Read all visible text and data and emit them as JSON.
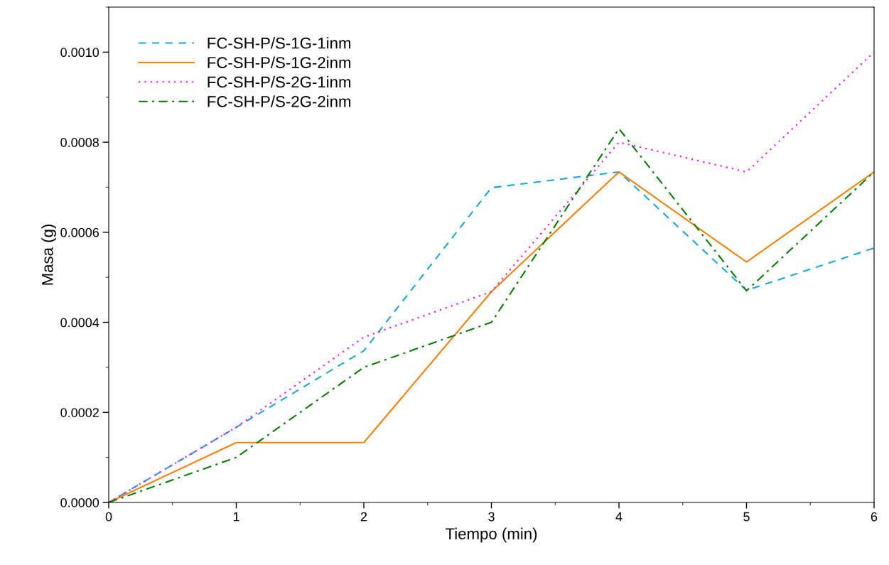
{
  "chart_data": {
    "type": "line",
    "xlabel": "Tiempo (min)",
    "ylabel": "Masa (g)",
    "x": [
      0,
      1,
      2,
      3,
      4,
      5,
      6
    ],
    "series": [
      {
        "name": "FC-SH-P/S-1G-1inm",
        "color": "#1aa7e0",
        "line_style": "dashed",
        "values": [
          0,
          0.000167,
          0.000337,
          0.000699,
          0.000734,
          0.000471,
          0.000565
        ]
      },
      {
        "name": "FC-SH-P/S-1G-2inm",
        "color": "#ff8000",
        "line_style": "solid",
        "values": [
          0,
          0.000133,
          0.000133,
          0.000468,
          0.000734,
          0.000534,
          0.000734
        ]
      },
      {
        "name": "FC-SH-P/S-2G-1inm",
        "color": "#ff00ff",
        "line_style": "dotted",
        "values": [
          0,
          0.000167,
          0.000367,
          0.000468,
          0.0008,
          0.000734,
          0.001
        ]
      },
      {
        "name": "FC-SH-P/S-2G-2inm",
        "color": "#008000",
        "line_style": "dashdot",
        "values": [
          0,
          0.0001,
          0.0003,
          0.0004,
          0.00083,
          0.00047,
          0.000734
        ]
      }
    ],
    "xlim": [
      0,
      6
    ],
    "xticks": [
      0,
      1,
      2,
      3,
      4,
      5,
      6
    ],
    "ylim": [
      0,
      0.0011
    ],
    "yticks": [
      {
        "value": 0,
        "label": "0.0000"
      },
      {
        "value": 0.0002,
        "label": "0.0002"
      },
      {
        "value": 0.0004,
        "label": "0.0004"
      },
      {
        "value": 0.0006,
        "label": "0.0006"
      },
      {
        "value": 0.0008,
        "label": "0.0008"
      },
      {
        "value": 0.001,
        "label": "0.0010"
      }
    ],
    "grid": false,
    "legend": "top left",
    "marker": "none"
  }
}
